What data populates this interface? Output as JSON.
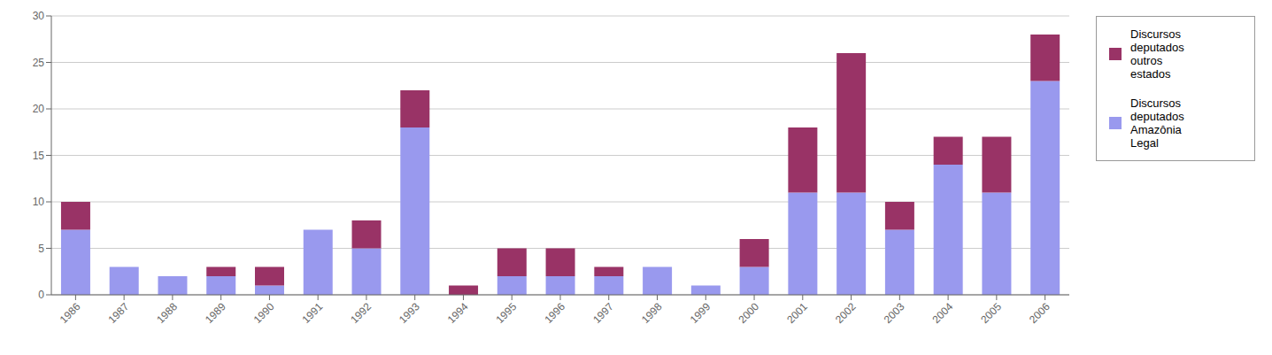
{
  "chart_data": {
    "type": "bar",
    "stacked": true,
    "categories": [
      "1986",
      "1987",
      "1988",
      "1989",
      "1990",
      "1991",
      "1992",
      "1993",
      "1994",
      "1995",
      "1996",
      "1997",
      "1998",
      "1999",
      "2000",
      "2001",
      "2002",
      "2003",
      "2004",
      "2005",
      "2006"
    ],
    "series": [
      {
        "name": "Discursos\ndeputados\nAmazônia\nLegal",
        "color": "#9999EE",
        "values": [
          7,
          3,
          2,
          2,
          1,
          7,
          5,
          18,
          0,
          2,
          2,
          2,
          3,
          1,
          3,
          11,
          11,
          7,
          14,
          11,
          23
        ]
      },
      {
        "name": "Discursos\ndeputados\noutros\nestados",
        "color": "#993366",
        "values": [
          3,
          0,
          0,
          1,
          2,
          0,
          3,
          4,
          1,
          3,
          3,
          1,
          0,
          0,
          3,
          7,
          15,
          3,
          3,
          6,
          5
        ]
      }
    ],
    "ylim": [
      0,
      30
    ],
    "yticks": [
      0,
      5,
      10,
      15,
      20,
      25,
      30
    ],
    "grid": true,
    "legend": "right"
  }
}
